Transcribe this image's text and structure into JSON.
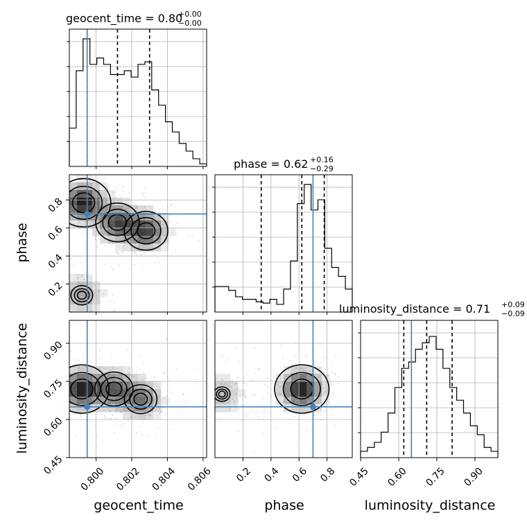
{
  "parameters": [
    {
      "name": "geocent_time",
      "title": "geocent_time = 0.80",
      "err_plus": "+0.00",
      "err_minus": "−0.00",
      "ticks": [
        0.8,
        0.802,
        0.804,
        0.806
      ],
      "tick_labels": [
        "0.800",
        "0.802",
        "0.804",
        "0.806"
      ],
      "range": [
        0.7985,
        0.8062
      ],
      "median": 0.8012,
      "q_low": 0.7995,
      "q_high": 0.803,
      "truth": 0.7995
    },
    {
      "name": "phase",
      "title": "phase = 0.62",
      "err_plus": "+0.16",
      "err_minus": "−0.29",
      "ticks": [
        0.2,
        0.4,
        0.6,
        0.8
      ],
      "tick_labels": [
        "0.2",
        "0.4",
        "0.6",
        "0.8"
      ],
      "range": [
        0.0,
        0.98
      ],
      "median": 0.62,
      "q_low": 0.33,
      "q_high": 0.78,
      "truth": 0.7
    },
    {
      "name": "luminosity_distance",
      "title": "luminosity_distance = 0.71",
      "err_plus": "+0.09",
      "err_minus": "−0.09",
      "ticks": [
        0.45,
        0.6,
        0.75,
        0.9
      ],
      "tick_labels": [
        "0.45",
        "0.60",
        "0.75",
        "0.90"
      ],
      "range": [
        0.45,
        0.99
      ],
      "median": 0.71,
      "q_low": 0.62,
      "q_high": 0.81,
      "truth": 0.65
    }
  ],
  "chart_data": {
    "type": "corner",
    "title": "",
    "parameters": [
      "geocent_time",
      "phase",
      "luminosity_distance"
    ],
    "truths": {
      "geocent_time": 0.7995,
      "phase": 0.7,
      "luminosity_distance": 0.65
    },
    "marginals": {
      "geocent_time": {
        "bin_edges_start": 0.7985,
        "bin_width": 0.0003846,
        "values": [
          0.3,
          0.75,
          1.0,
          0.8,
          0.85,
          0.8,
          0.72,
          0.72,
          0.75,
          0.7,
          0.8,
          0.82,
          0.6,
          0.48,
          0.35,
          0.27,
          0.18,
          0.12,
          0.06,
          0.02
        ]
      },
      "phase": {
        "bin_edges_start": 0.0,
        "bin_width": 0.049,
        "values": [
          0.2,
          0.2,
          0.17,
          0.12,
          0.1,
          0.1,
          0.08,
          0.07,
          0.1,
          0.06,
          0.18,
          0.4,
          0.85,
          1.0,
          0.8,
          0.88,
          0.5,
          0.35,
          0.28,
          0.18
        ]
      },
      "luminosity_distance": {
        "bin_edges_start": 0.45,
        "bin_width": 0.027,
        "values": [
          0.05,
          0.08,
          0.12,
          0.2,
          0.35,
          0.55,
          0.7,
          0.75,
          0.85,
          0.9,
          0.95,
          0.85,
          0.7,
          0.55,
          0.45,
          0.35,
          0.25,
          0.18,
          0.08,
          0.05
        ]
      }
    },
    "density_clusters": {
      "geocent_time_vs_phase": [
        {
          "x": 0.7993,
          "y": 0.78,
          "w": 1.0
        },
        {
          "x": 0.8012,
          "y": 0.64,
          "w": 0.8
        },
        {
          "x": 0.8028,
          "y": 0.58,
          "w": 0.8
        },
        {
          "x": 0.7992,
          "y": 0.12,
          "w": 0.4
        }
      ],
      "geocent_time_vs_luminosity_distance": [
        {
          "x": 0.7992,
          "y": 0.72,
          "w": 1.0
        },
        {
          "x": 0.801,
          "y": 0.72,
          "w": 0.7
        },
        {
          "x": 0.8025,
          "y": 0.68,
          "w": 0.6
        }
      ],
      "phase_vs_luminosity_distance": [
        {
          "x": 0.62,
          "y": 0.72,
          "w": 1.0
        },
        {
          "x": 0.05,
          "y": 0.7,
          "w": 0.3
        }
      ]
    }
  }
}
